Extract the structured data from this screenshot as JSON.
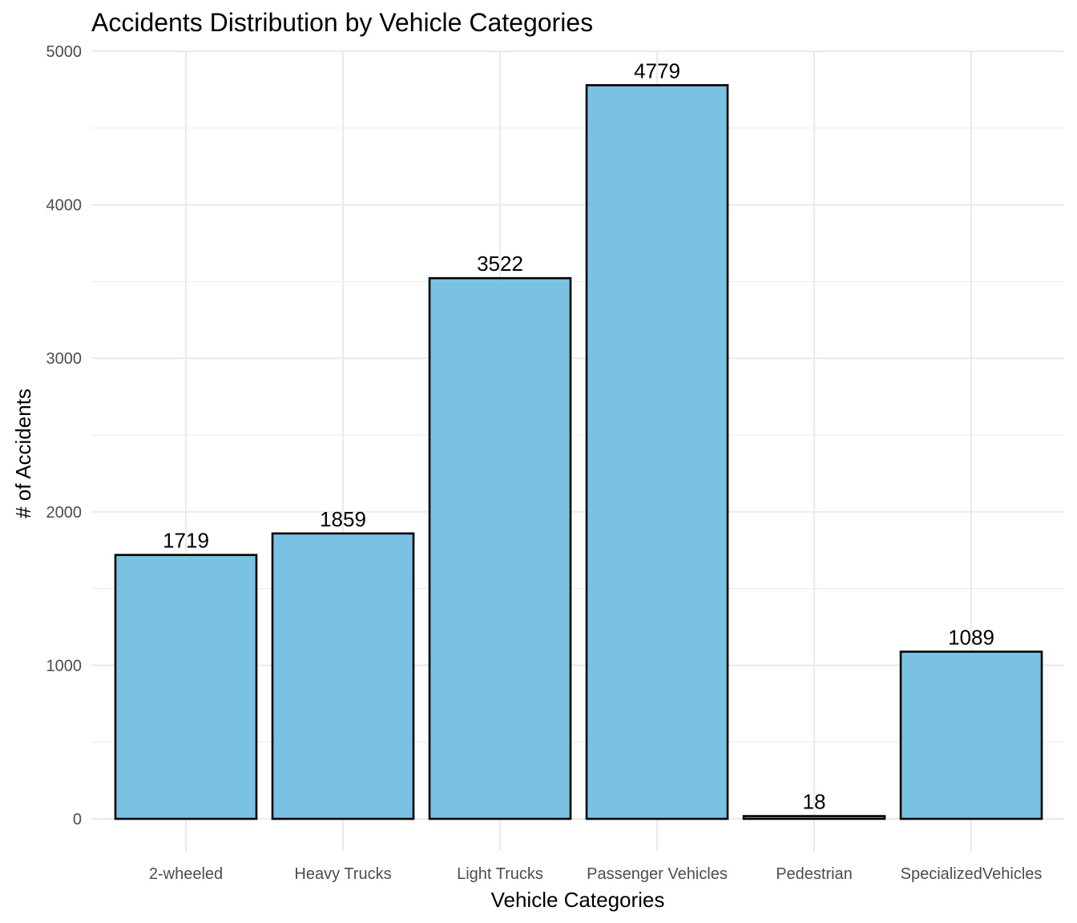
{
  "chart_data": {
    "type": "bar",
    "title": "Accidents Distribution by Vehicle Categories",
    "xlabel": "Vehicle Categories",
    "ylabel": "# of Accidents",
    "categories": [
      "2-wheeled",
      "Heavy Trucks",
      "Light Trucks",
      "Passenger Vehicles",
      "Pedestrian",
      "SpecializedVehicles"
    ],
    "values": [
      1719,
      1859,
      3522,
      4779,
      18,
      1089
    ],
    "data_labels": [
      "1719",
      "1859",
      "3522",
      "4779",
      "18",
      "1089"
    ],
    "yticks": [
      0,
      1000,
      2000,
      3000,
      4000,
      5000
    ],
    "ytick_labels": [
      "0",
      "1000",
      "2000",
      "3000",
      "4000",
      "5000"
    ],
    "ylim": [
      0,
      5000
    ],
    "grid": true,
    "legend": "none",
    "colors": {
      "bar_fill": "#7ac2e4",
      "bar_stroke": "#000000",
      "grid": "#ebebeb",
      "tick_text": "#4d4d4d"
    }
  }
}
